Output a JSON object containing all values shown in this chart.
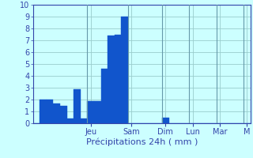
{
  "title": "",
  "xlabel": "Précipitations 24h ( mm )",
  "ylabel": "",
  "bar_color": "#1155cc",
  "background_color": "#ccffff",
  "grid_color": "#99cccc",
  "axis_color": "#3344aa",
  "text_color": "#3344aa",
  "ylim": [
    0,
    10
  ],
  "yticks": [
    0,
    1,
    2,
    3,
    4,
    5,
    6,
    7,
    8,
    9,
    10
  ],
  "bar_values": [
    0.0,
    2.0,
    2.0,
    1.7,
    1.5,
    0.4,
    2.9,
    0.4,
    1.9,
    1.9,
    4.6,
    7.4,
    7.5,
    9.0,
    0.0,
    0.0,
    0.0,
    0.0,
    0.0,
    0.5,
    0.0,
    0.0,
    0.0,
    0.0,
    0.0,
    0.0,
    0.0,
    0.0,
    0.0,
    0.0,
    0.0,
    0.0
  ],
  "day_labels": [
    "Jeu",
    "Sam",
    "Dim",
    "Lun",
    "Mar",
    "M"
  ],
  "day_tick_positions": [
    8,
    14,
    19,
    23,
    27,
    31
  ],
  "day_separator_positions": [
    8,
    14,
    19,
    23,
    27,
    31
  ],
  "num_bars": 32,
  "xlabel_fontsize": 8,
  "tick_fontsize": 7
}
